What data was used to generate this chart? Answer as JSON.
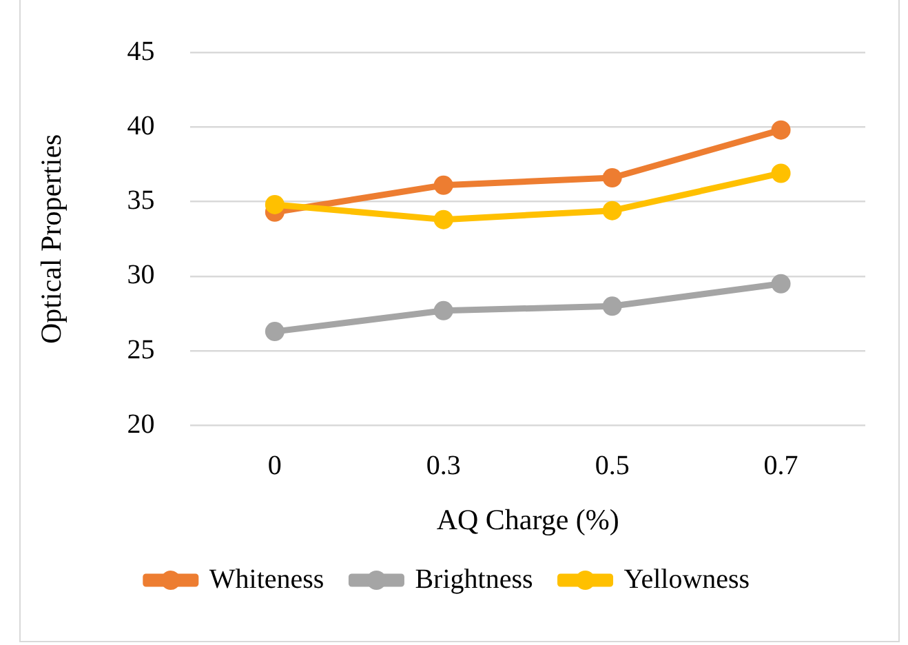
{
  "chart_data": {
    "type": "line",
    "xlabel": "AQ Charge (%)",
    "ylabel": "Optical Properties",
    "categories": [
      "0",
      "0.3",
      "0.5",
      "0.7"
    ],
    "series": [
      {
        "name": "Whiteness",
        "color": "#ed7d31",
        "values": [
          34.3,
          36.1,
          36.6,
          39.8
        ]
      },
      {
        "name": "Brightness",
        "color": "#a5a5a5",
        "values": [
          26.3,
          27.7,
          28.0,
          29.5
        ]
      },
      {
        "name": "Yellowness",
        "color": "#ffc000",
        "values": [
          34.8,
          33.8,
          34.4,
          36.9
        ]
      }
    ],
    "ylim": [
      20,
      45
    ],
    "yticks": [
      20,
      25,
      30,
      35,
      40,
      45
    ],
    "grid": "y",
    "legend": "bottom",
    "marker": "circle",
    "line_style": "solid"
  }
}
